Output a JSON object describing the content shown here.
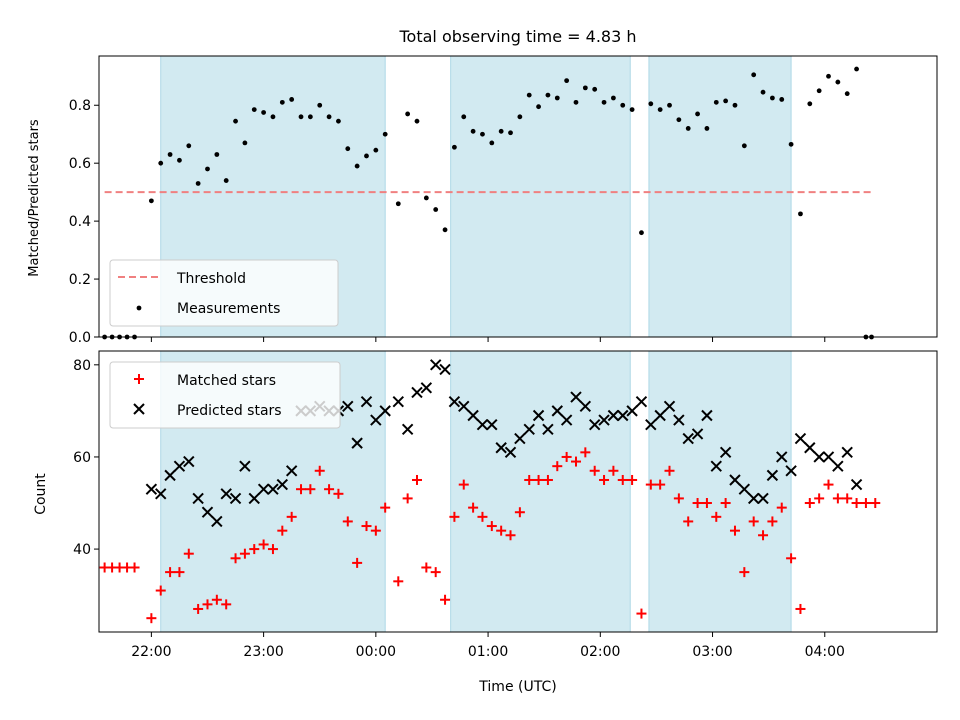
{
  "chart_data": [
    {
      "type": "scatter",
      "title": "Total observing time = 4.83 h",
      "xlabel": "",
      "ylabel": "Matched/Predicted stars",
      "xlim": [
        "21:32",
        "05:00"
      ],
      "ylim": [
        0,
        0.97
      ],
      "yticks": [
        "0.0",
        "0.2",
        "0.4",
        "0.6",
        "0.8"
      ],
      "shaded_intervals": [
        [
          "22:05",
          "00:05"
        ],
        [
          "00:40",
          "02:16"
        ],
        [
          "02:26",
          "03:42"
        ]
      ],
      "shade_color": "#add8e6",
      "threshold": {
        "name": "Threshold",
        "y": 0.5,
        "x_start": "21:35",
        "x_end": "04:25",
        "color": "#f08080",
        "style": "dashed"
      },
      "legend": {
        "position": "lower-left",
        "entries": [
          "Threshold",
          "Measurements"
        ]
      },
      "series": [
        {
          "name": "Measurements",
          "color": "#000000",
          "marker": "dot",
          "points": [
            [
              "21:35",
              0.0
            ],
            [
              "21:39",
              0.0
            ],
            [
              "21:43",
              0.0
            ],
            [
              "21:47",
              0.0
            ],
            [
              "21:51",
              0.0
            ],
            [
              "22:00",
              0.47
            ],
            [
              "22:05",
              0.6
            ],
            [
              "22:10",
              0.63
            ],
            [
              "22:15",
              0.61
            ],
            [
              "22:20",
              0.66
            ],
            [
              "22:25",
              0.53
            ],
            [
              "22:30",
              0.58
            ],
            [
              "22:35",
              0.63
            ],
            [
              "22:40",
              0.54
            ],
            [
              "22:45",
              0.745
            ],
            [
              "22:50",
              0.67
            ],
            [
              "22:55",
              0.785
            ],
            [
              "23:00",
              0.775
            ],
            [
              "23:05",
              0.76
            ],
            [
              "23:10",
              0.81
            ],
            [
              "23:15",
              0.82
            ],
            [
              "23:20",
              0.76
            ],
            [
              "23:25",
              0.76
            ],
            [
              "23:30",
              0.8
            ],
            [
              "23:35",
              0.76
            ],
            [
              "23:40",
              0.745
            ],
            [
              "23:45",
              0.65
            ],
            [
              "23:50",
              0.59
            ],
            [
              "23:55",
              0.625
            ],
            [
              "00:00",
              0.645
            ],
            [
              "00:05",
              0.7
            ],
            [
              "00:12",
              0.46
            ],
            [
              "00:17",
              0.77
            ],
            [
              "00:22",
              0.745
            ],
            [
              "00:27",
              0.48
            ],
            [
              "00:32",
              0.44
            ],
            [
              "00:37",
              0.37
            ],
            [
              "00:42",
              0.655
            ],
            [
              "00:47",
              0.76
            ],
            [
              "00:52",
              0.71
            ],
            [
              "00:57",
              0.7
            ],
            [
              "01:02",
              0.67
            ],
            [
              "01:07",
              0.71
            ],
            [
              "01:12",
              0.705
            ],
            [
              "01:17",
              0.76
            ],
            [
              "01:22",
              0.835
            ],
            [
              "01:27",
              0.795
            ],
            [
              "01:32",
              0.835
            ],
            [
              "01:37",
              0.825
            ],
            [
              "01:42",
              0.885
            ],
            [
              "01:47",
              0.81
            ],
            [
              "01:52",
              0.86
            ],
            [
              "01:57",
              0.855
            ],
            [
              "02:02",
              0.81
            ],
            [
              "02:07",
              0.825
            ],
            [
              "02:12",
              0.8
            ],
            [
              "02:17",
              0.785
            ],
            [
              "02:22",
              0.36
            ],
            [
              "02:27",
              0.805
            ],
            [
              "02:32",
              0.785
            ],
            [
              "02:37",
              0.8
            ],
            [
              "02:42",
              0.75
            ],
            [
              "02:47",
              0.72
            ],
            [
              "02:52",
              0.77
            ],
            [
              "02:57",
              0.72
            ],
            [
              "03:02",
              0.81
            ],
            [
              "03:07",
              0.815
            ],
            [
              "03:12",
              0.8
            ],
            [
              "03:17",
              0.66
            ],
            [
              "03:22",
              0.905
            ],
            [
              "03:27",
              0.845
            ],
            [
              "03:32",
              0.825
            ],
            [
              "03:37",
              0.82
            ],
            [
              "03:42",
              0.665
            ],
            [
              "03:47",
              0.425
            ],
            [
              "03:52",
              0.805
            ],
            [
              "03:57",
              0.85
            ],
            [
              "04:02",
              0.9
            ],
            [
              "04:07",
              0.88
            ],
            [
              "04:12",
              0.84
            ],
            [
              "04:17",
              0.925
            ],
            [
              "04:22",
              0.0
            ],
            [
              "04:25",
              0.0
            ]
          ]
        }
      ]
    },
    {
      "type": "scatter",
      "title": "",
      "xlabel": "Time (UTC)",
      "ylabel": "Count",
      "xlim": [
        "21:32",
        "05:00"
      ],
      "ylim": [
        22,
        83
      ],
      "yticks": [
        "40",
        "60",
        "80"
      ],
      "xticks": [
        "22:00",
        "23:00",
        "00:00",
        "01:00",
        "02:00",
        "03:00",
        "04:00"
      ],
      "shaded_intervals": [
        [
          "22:05",
          "00:05"
        ],
        [
          "00:40",
          "02:16"
        ],
        [
          "02:26",
          "03:42"
        ]
      ],
      "shade_color": "#add8e6",
      "legend": {
        "position": "top-left",
        "entries": [
          "Matched stars",
          "Predicted stars"
        ]
      },
      "series": [
        {
          "name": "Matched stars",
          "color": "#ff0000",
          "marker": "plus",
          "points": [
            [
              "21:35",
              36
            ],
            [
              "21:39",
              36
            ],
            [
              "21:43",
              36
            ],
            [
              "21:47",
              36
            ],
            [
              "21:51",
              36
            ],
            [
              "22:00",
              25
            ],
            [
              "22:05",
              31
            ],
            [
              "22:10",
              35
            ],
            [
              "22:15",
              35
            ],
            [
              "22:20",
              39
            ],
            [
              "22:25",
              27
            ],
            [
              "22:30",
              28
            ],
            [
              "22:35",
              29
            ],
            [
              "22:40",
              28
            ],
            [
              "22:45",
              38
            ],
            [
              "22:50",
              39
            ],
            [
              "22:55",
              40
            ],
            [
              "23:00",
              41
            ],
            [
              "23:05",
              40
            ],
            [
              "23:10",
              44
            ],
            [
              "23:15",
              47
            ],
            [
              "23:20",
              53
            ],
            [
              "23:25",
              53
            ],
            [
              "23:30",
              57
            ],
            [
              "23:35",
              53
            ],
            [
              "23:40",
              52
            ],
            [
              "23:45",
              46
            ],
            [
              "23:50",
              37
            ],
            [
              "23:55",
              45
            ],
            [
              "00:00",
              44
            ],
            [
              "00:05",
              49
            ],
            [
              "00:12",
              33
            ],
            [
              "00:17",
              51
            ],
            [
              "00:22",
              55
            ],
            [
              "00:27",
              36
            ],
            [
              "00:32",
              35
            ],
            [
              "00:37",
              29
            ],
            [
              "00:42",
              47
            ],
            [
              "00:47",
              54
            ],
            [
              "00:52",
              49
            ],
            [
              "00:57",
              47
            ],
            [
              "01:02",
              45
            ],
            [
              "01:07",
              44
            ],
            [
              "01:12",
              43
            ],
            [
              "01:17",
              48
            ],
            [
              "01:22",
              55
            ],
            [
              "01:27",
              55
            ],
            [
              "01:32",
              55
            ],
            [
              "01:37",
              58
            ],
            [
              "01:42",
              60
            ],
            [
              "01:47",
              59
            ],
            [
              "01:52",
              61
            ],
            [
              "01:57",
              57
            ],
            [
              "02:02",
              55
            ],
            [
              "02:07",
              57
            ],
            [
              "02:12",
              55
            ],
            [
              "02:17",
              55
            ],
            [
              "02:22",
              26
            ],
            [
              "02:27",
              54
            ],
            [
              "02:32",
              54
            ],
            [
              "02:37",
              57
            ],
            [
              "02:42",
              51
            ],
            [
              "02:47",
              46
            ],
            [
              "02:52",
              50
            ],
            [
              "02:57",
              50
            ],
            [
              "03:02",
              47
            ],
            [
              "03:07",
              50
            ],
            [
              "03:12",
              44
            ],
            [
              "03:17",
              35
            ],
            [
              "03:22",
              46
            ],
            [
              "03:27",
              43
            ],
            [
              "03:32",
              46
            ],
            [
              "03:37",
              49
            ],
            [
              "03:42",
              38
            ],
            [
              "03:47",
              27
            ],
            [
              "03:52",
              50
            ],
            [
              "03:57",
              51
            ],
            [
              "04:02",
              54
            ],
            [
              "04:07",
              51
            ],
            [
              "04:12",
              51
            ],
            [
              "04:17",
              50
            ],
            [
              "04:22",
              50
            ],
            [
              "04:27",
              50
            ]
          ]
        },
        {
          "name": "Predicted stars",
          "color": "#000000",
          "marker": "x",
          "points": [
            [
              "22:00",
              53
            ],
            [
              "22:05",
              52
            ],
            [
              "22:10",
              56
            ],
            [
              "22:15",
              58
            ],
            [
              "22:20",
              59
            ],
            [
              "22:25",
              51
            ],
            [
              "22:30",
              48
            ],
            [
              "22:35",
              46
            ],
            [
              "22:40",
              52
            ],
            [
              "22:45",
              51
            ],
            [
              "22:50",
              58
            ],
            [
              "22:55",
              51
            ],
            [
              "23:00",
              53
            ],
            [
              "23:05",
              53
            ],
            [
              "23:10",
              54
            ],
            [
              "23:15",
              57
            ],
            [
              "23:20",
              70
            ],
            [
              "23:25",
              70
            ],
            [
              "23:30",
              71
            ],
            [
              "23:35",
              70
            ],
            [
              "23:40",
              70
            ],
            [
              "23:45",
              71
            ],
            [
              "23:50",
              63
            ],
            [
              "23:55",
              72
            ],
            [
              "00:00",
              68
            ],
            [
              "00:05",
              70
            ],
            [
              "00:12",
              72
            ],
            [
              "00:17",
              66
            ],
            [
              "00:22",
              74
            ],
            [
              "00:27",
              75
            ],
            [
              "00:32",
              80
            ],
            [
              "00:37",
              79
            ],
            [
              "00:42",
              72
            ],
            [
              "00:47",
              71
            ],
            [
              "00:52",
              69
            ],
            [
              "00:57",
              67
            ],
            [
              "01:02",
              67
            ],
            [
              "01:07",
              62
            ],
            [
              "01:12",
              61
            ],
            [
              "01:17",
              64
            ],
            [
              "01:22",
              66
            ],
            [
              "01:27",
              69
            ],
            [
              "01:32",
              66
            ],
            [
              "01:37",
              70
            ],
            [
              "01:42",
              68
            ],
            [
              "01:47",
              73
            ],
            [
              "01:52",
              71
            ],
            [
              "01:57",
              67
            ],
            [
              "02:02",
              68
            ],
            [
              "02:07",
              69
            ],
            [
              "02:12",
              69
            ],
            [
              "02:17",
              70
            ],
            [
              "02:22",
              72
            ],
            [
              "02:27",
              67
            ],
            [
              "02:32",
              69
            ],
            [
              "02:37",
              71
            ],
            [
              "02:42",
              68
            ],
            [
              "02:47",
              64
            ],
            [
              "02:52",
              65
            ],
            [
              "02:57",
              69
            ],
            [
              "03:02",
              58
            ],
            [
              "03:07",
              61
            ],
            [
              "03:12",
              55
            ],
            [
              "03:17",
              53
            ],
            [
              "03:22",
              51
            ],
            [
              "03:27",
              51
            ],
            [
              "03:32",
              56
            ],
            [
              "03:37",
              60
            ],
            [
              "03:42",
              57
            ],
            [
              "03:47",
              64
            ],
            [
              "03:52",
              62
            ],
            [
              "03:57",
              60
            ],
            [
              "04:02",
              60
            ],
            [
              "04:07",
              58
            ],
            [
              "04:12",
              61
            ],
            [
              "04:17",
              54
            ]
          ]
        }
      ]
    }
  ]
}
